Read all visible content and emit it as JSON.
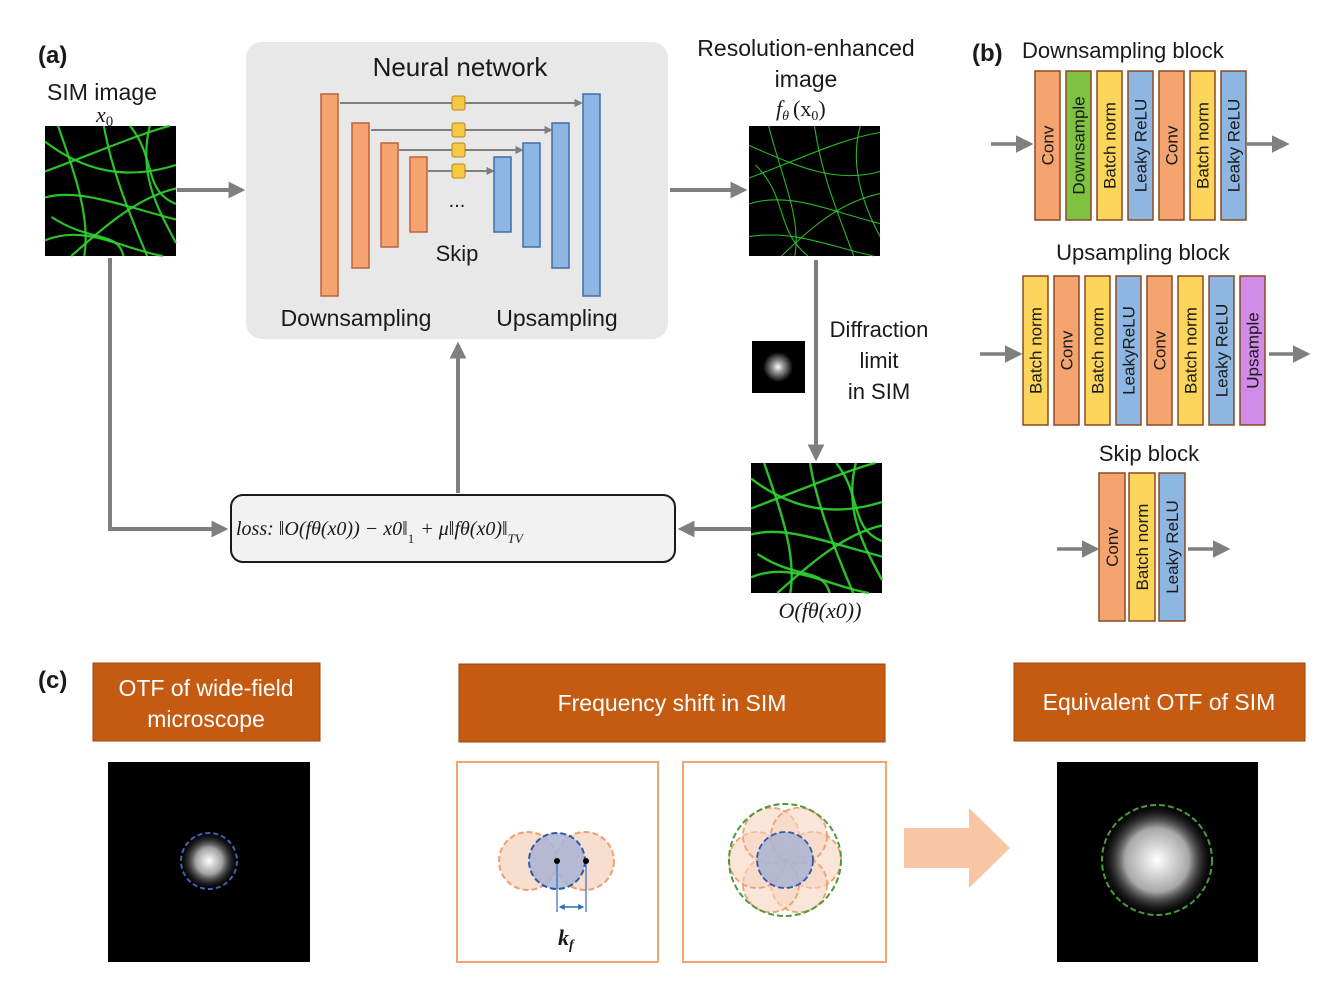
{
  "panel_a": {
    "label": "(a)",
    "sim_image": {
      "title": "SIM image",
      "symbol": "x",
      "subscript": "0"
    },
    "neural_network": {
      "title": "Neural network",
      "skip": "Skip",
      "ellipsis": "...",
      "down": "Downsampling",
      "up": "Upsampling"
    },
    "output": {
      "title_line1": "Resolution-enhanced",
      "title_line2": "image",
      "symbol": "f",
      "theta": "θ",
      "arg": "(x",
      "arg_sub": "0",
      "close": ")"
    },
    "diffraction": {
      "line1": "Diffraction",
      "line2": "limit",
      "line3": "in SIM"
    },
    "reblurred": {
      "label": "O(fθ(x0))"
    },
    "loss": {
      "prefix": "loss:",
      "term1": "‖O(fθ(x0)) − x0‖",
      "sub1": "1",
      "plus": "+ μ‖fθ(x0)‖",
      "subtv": "TV"
    }
  },
  "panel_b": {
    "label": "(b)",
    "downsampling": {
      "title": "Downsampling block",
      "layers": [
        {
          "name": "Conv",
          "color": "#f5a470"
        },
        {
          "name": "Downsample",
          "color": "#7fc241"
        },
        {
          "name": "Batch norm",
          "color": "#fdd55a"
        },
        {
          "name": "Leaky ReLU",
          "color": "#8eb6e2"
        },
        {
          "name": "Conv",
          "color": "#f5a470"
        },
        {
          "name": "Batch norm",
          "color": "#fdd55a"
        },
        {
          "name": "Leaky ReLU",
          "color": "#8eb6e2"
        }
      ]
    },
    "upsampling": {
      "title": "Upsampling block",
      "layers": [
        {
          "name": "Batch norm",
          "color": "#fdd55a"
        },
        {
          "name": "Conv",
          "color": "#f5a470"
        },
        {
          "name": "Batch norm",
          "color": "#fdd55a"
        },
        {
          "name": "LeakyReLU",
          "color": "#8eb6e2"
        },
        {
          "name": "Conv",
          "color": "#f5a470"
        },
        {
          "name": "Batch norm",
          "color": "#fdd55a"
        },
        {
          "name": "Leaky ReLU",
          "color": "#8eb6e2"
        },
        {
          "name": "Upsample",
          "color": "#cf8be6"
        }
      ]
    },
    "skip": {
      "title": "Skip block",
      "layers": [
        {
          "name": "Conv",
          "color": "#f5a470"
        },
        {
          "name": "Batch norm",
          "color": "#fdd55a"
        },
        {
          "name": "Leaky ReLU",
          "color": "#8eb6e2"
        }
      ]
    }
  },
  "panel_c": {
    "label": "(c)",
    "otf_widefield": {
      "line1": "OTF of wide-field",
      "line2": "microscope"
    },
    "freq_shift": {
      "title": "Frequency shift in SIM",
      "kf": "k",
      "kf_sub": "f"
    },
    "equiv_otf": {
      "title": "Equivalent OTF of SIM"
    }
  },
  "colors": {
    "down_layer": "#f5a470",
    "up_layer": "#8eb6e2",
    "skip_node": "#f7c843",
    "header_fill": "#c55a11",
    "arrow": "#7f7f7f",
    "green_fiber": "#2fd62f"
  }
}
